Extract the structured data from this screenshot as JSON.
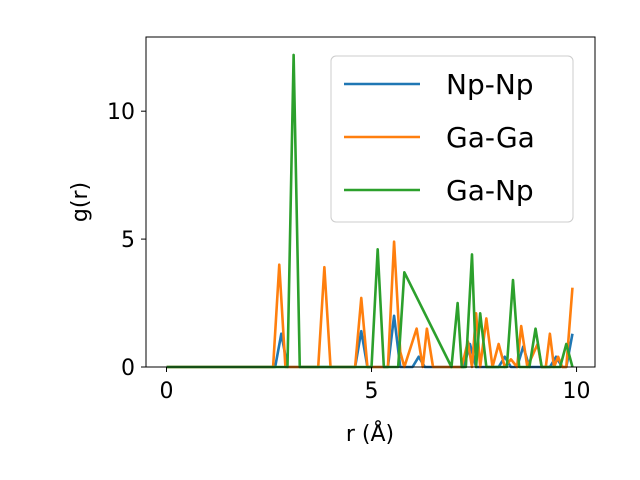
{
  "chart_data": {
    "type": "line",
    "xlabel": "r (Å)",
    "ylabel": "g(r)",
    "xlim": [
      -0.5,
      10.45
    ],
    "ylim": [
      0,
      12.9
    ],
    "xticks": [
      0,
      5,
      10
    ],
    "yticks": [
      0,
      5,
      10
    ],
    "legend_position": "top-right",
    "grid": false,
    "series": [
      {
        "name": "Np-Np",
        "color": "#1f77b4",
        "x": [
          0,
          2.65,
          2.8,
          2.95,
          4.6,
          4.75,
          4.9,
          5.4,
          5.55,
          5.7,
          6.0,
          6.15,
          6.3,
          7.25,
          7.4,
          7.55,
          8.1,
          8.25,
          8.4,
          8.55,
          8.7,
          8.85,
          9.35,
          9.5,
          9.65,
          9.75,
          9.9
        ],
        "y": [
          0,
          0,
          1.3,
          0,
          0,
          1.4,
          0,
          0,
          2.0,
          0,
          0,
          0.4,
          0,
          0,
          0.9,
          0,
          0,
          0.4,
          0,
          0,
          0.8,
          0,
          0,
          0.4,
          0,
          0,
          1.3
        ]
      },
      {
        "name": "Ga-Ga",
        "color": "#ff7f0e",
        "x": [
          0,
          2.6,
          2.75,
          2.9,
          3.7,
          3.85,
          4.0,
          4.6,
          4.75,
          4.9,
          5.4,
          5.55,
          5.7,
          5.8,
          6.1,
          6.25,
          6.35,
          6.5,
          7.2,
          7.35,
          7.45,
          7.55,
          7.65,
          7.8,
          7.95,
          8.1,
          8.25,
          8.4,
          8.55,
          8.65,
          8.8,
          9.05,
          9.15,
          9.25,
          9.35,
          9.45,
          9.55,
          9.65,
          9.75,
          9.9
        ],
        "y": [
          0,
          0,
          4.0,
          0,
          0,
          3.9,
          0,
          0,
          2.7,
          0,
          0,
          4.9,
          0.6,
          0,
          1.5,
          0,
          1.5,
          0,
          0,
          1.0,
          0,
          2.1,
          0,
          1.9,
          0,
          0.9,
          0,
          0.3,
          0,
          1.6,
          0,
          0.9,
          0,
          0,
          1.3,
          0,
          0.4,
          0,
          0,
          3.1
        ]
      },
      {
        "name": "Ga-Np",
        "color": "#2ca02c",
        "x": [
          0,
          2.95,
          3.1,
          3.25,
          5.0,
          5.15,
          5.3,
          5.65,
          5.8,
          6.95,
          7.1,
          7.2,
          7.3,
          7.45,
          7.55,
          7.65,
          7.8,
          7.9,
          8.3,
          8.45,
          8.6,
          8.85,
          9.0,
          9.15,
          9.6,
          9.75,
          9.9
        ],
        "y": [
          0,
          0,
          12.2,
          0,
          0,
          4.6,
          0,
          0,
          3.7,
          0,
          2.5,
          0,
          0,
          4.4,
          0,
          2.1,
          0,
          0,
          0,
          3.4,
          0,
          0,
          1.5,
          0,
          0,
          0.9,
          0
        ]
      }
    ]
  }
}
